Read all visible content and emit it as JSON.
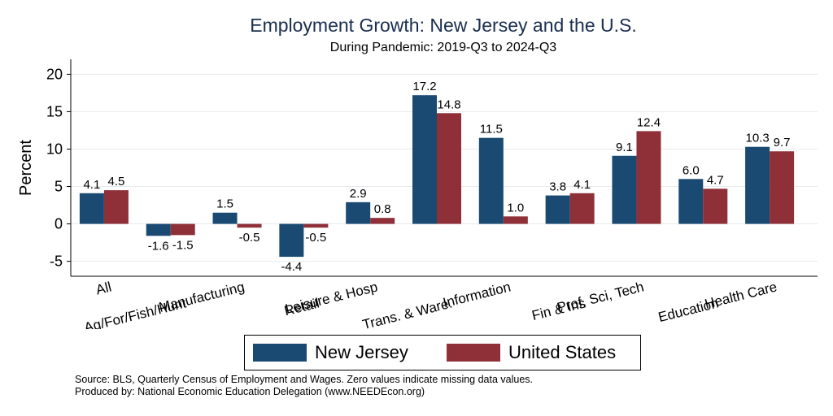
{
  "chart_data": {
    "type": "bar",
    "title": "Employment Growth: New Jersey and the U.S.",
    "subtitle": "During Pandemic: 2019-Q3 to 2024-Q3",
    "ylabel": "Percent",
    "ylim": [
      -7,
      22
    ],
    "yticks": [
      -5,
      0,
      5,
      10,
      15,
      20
    ],
    "ytick_labels": [
      "-5",
      "0",
      "5",
      "10",
      "15",
      "20"
    ],
    "grid": true,
    "legend_position": "bottom",
    "categories": [
      "All",
      "Ag/For/Fish/Hunt",
      "Manufacturing",
      "Retail",
      "Leisure & Hosp",
      "Trans. & Ware.",
      "Information",
      "Fin & Ins",
      "Prof, Sci, Tech",
      "Education",
      "Health Care"
    ],
    "series": [
      {
        "name": "New Jersey",
        "color": "#1a4a72",
        "values": [
          4.1,
          -1.6,
          1.5,
          -4.4,
          2.9,
          17.2,
          11.5,
          3.8,
          9.1,
          6.0,
          10.3
        ],
        "labels": [
          "4.1",
          "-1.6",
          "1.5",
          "-4.4",
          "2.9",
          "17.2",
          "11.5",
          "3.8",
          "9.1",
          "6.0",
          "10.3"
        ]
      },
      {
        "name": "United States",
        "color": "#8f3039",
        "values": [
          4.5,
          -1.5,
          -0.5,
          -0.5,
          0.8,
          14.8,
          1.0,
          4.1,
          12.4,
          4.7,
          9.7
        ],
        "labels": [
          "4.5",
          "-1.5",
          "-0.5",
          "-0.5",
          "0.8",
          "14.8",
          "1.0",
          "4.1",
          "12.4",
          "4.7",
          "9.7"
        ]
      }
    ]
  },
  "footer": {
    "source_line": "Source: BLS, Quarterly Census of Employment and Wages. Zero values indicate missing data values.",
    "produced_line": "Produced by: National Economic Education Delegation (www.NEEDEcon.org)"
  }
}
